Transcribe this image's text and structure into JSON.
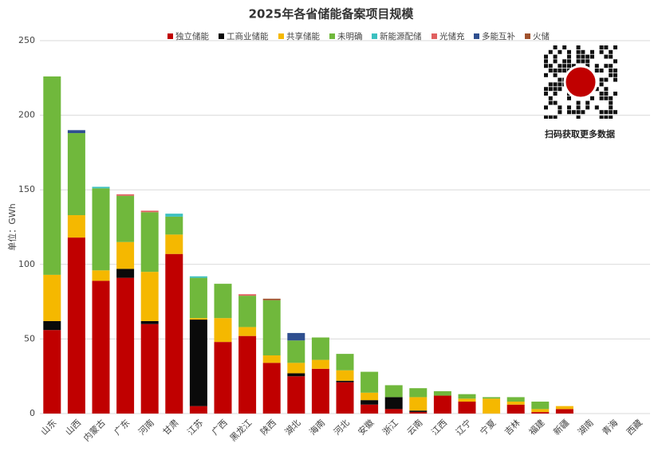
{
  "chart_data": {
    "type": "stacked_bar",
    "title": "2025年各省储能备案项目规模",
    "y_label": "单位：GWh",
    "annotation": "扫码获取更多数据",
    "categories": [
      "山东",
      "山西",
      "内蒙古",
      "广东",
      "河南",
      "甘肃",
      "江苏",
      "广西",
      "黑龙江",
      "陕西",
      "湖北",
      "海南",
      "河北",
      "安徽",
      "浙江",
      "云南",
      "江西",
      "辽宁",
      "宁夏",
      "吉林",
      "福建",
      "新疆",
      "湖南",
      "青海",
      "西藏"
    ],
    "series": [
      {
        "name": "独立储能",
        "color": "#c00000",
        "values": [
          56,
          118,
          89,
          91,
          60,
          107,
          5,
          48,
          52,
          34,
          25,
          30,
          21,
          6,
          3,
          1,
          12,
          8,
          0,
          6,
          1,
          3,
          0,
          0,
          0
        ]
      },
      {
        "name": "工商业储能",
        "color": "#0a0a0a",
        "values": [
          6,
          0,
          0,
          6,
          2,
          0,
          58,
          0,
          0,
          0,
          2,
          0,
          1,
          3,
          8,
          1,
          0,
          0,
          0,
          0,
          0,
          0,
          0,
          0,
          0
        ]
      },
      {
        "name": "共享储能",
        "color": "#f5b800",
        "values": [
          31,
          15,
          7,
          18,
          33,
          13,
          1,
          16,
          6,
          5,
          7,
          6,
          7,
          5,
          0,
          9,
          0,
          2,
          10,
          2,
          2,
          2,
          0,
          0,
          0
        ]
      },
      {
        "name": "未明确",
        "color": "#70b83c",
        "values": [
          133,
          55,
          55,
          31,
          40,
          12,
          27,
          23,
          21,
          37,
          15,
          15,
          11,
          14,
          8,
          6,
          3,
          3,
          1,
          3,
          5,
          0,
          0,
          0,
          0
        ]
      },
      {
        "name": "新能源配储",
        "color": "#3cc0c0",
        "values": [
          0,
          0,
          1,
          0,
          0,
          2,
          1,
          0,
          0,
          0,
          0,
          0,
          0,
          0,
          0,
          0,
          0,
          0,
          0,
          0,
          0,
          0,
          0,
          0,
          0
        ]
      },
      {
        "name": "光储充",
        "color": "#e06060",
        "values": [
          0,
          0,
          0,
          1,
          1,
          0,
          0,
          0,
          1,
          0,
          0,
          0,
          0,
          0,
          0,
          0,
          0,
          0,
          0,
          0,
          0,
          0,
          0,
          0,
          0
        ]
      },
      {
        "name": "多能互补",
        "color": "#2f4f8f",
        "values": [
          0,
          2,
          0,
          0,
          0,
          0,
          0,
          0,
          0,
          0,
          5,
          0,
          0,
          0,
          0,
          0,
          0,
          0,
          0,
          0,
          0,
          0,
          0,
          0,
          0
        ]
      },
      {
        "name": "火储",
        "color": "#a0522d",
        "values": [
          0,
          0,
          0,
          0,
          0,
          0,
          0,
          0,
          0,
          1,
          0,
          0,
          0,
          0,
          0,
          0,
          0,
          0,
          0,
          0,
          0,
          0,
          0,
          0,
          0
        ]
      }
    ],
    "ylim": [
      0,
      250
    ],
    "yticks": [
      0,
      50,
      100,
      150,
      200,
      250
    ],
    "grid": true
  }
}
